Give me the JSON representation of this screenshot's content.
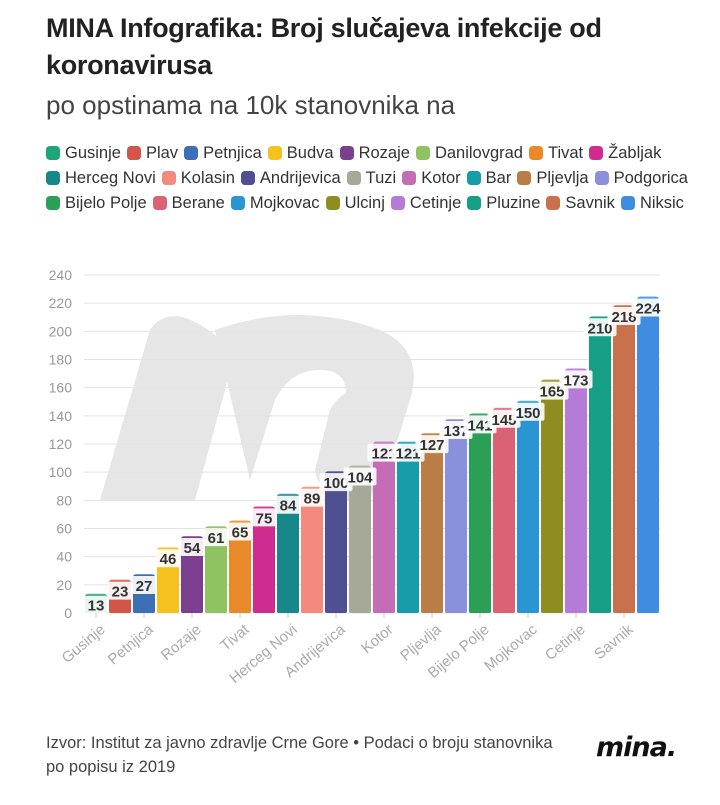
{
  "header": {
    "title": "MINA Infografika: Broj slučajeva infekcije od koronavirusa",
    "subtitle": "po opstinama na 10k stanovnika na"
  },
  "footer": {
    "source": "Izvor: Institut za javno zdravlje Crne Gore • Podaci o broju stanovnika po popisu iz 2019",
    "logo": "mina."
  },
  "chart_data": {
    "type": "bar",
    "categories": [
      "Gusinje",
      "Plav",
      "Petnjica",
      "Budva",
      "Rozaje",
      "Danilovgrad",
      "Tivat",
      "Žabljak",
      "Herceg Novi",
      "Kolasin",
      "Andrijevica",
      "Tuzi",
      "Kotor",
      "Bar",
      "Pljevlja",
      "Podgorica",
      "Bijelo Polje",
      "Berane",
      "Mojkovac",
      "Ulcinj",
      "Cetinje",
      "Pluzine",
      "Savnik",
      "Niksic"
    ],
    "values": [
      13,
      23,
      27,
      46,
      54,
      61,
      65,
      75,
      84,
      89,
      100,
      104,
      121,
      121,
      127,
      137,
      141,
      145,
      150,
      165,
      173,
      210,
      218,
      224
    ],
    "data_labels": [
      "13",
      "23",
      "27",
      "46",
      "54",
      "61",
      "65",
      "75",
      "84",
      "89",
      "100",
      "104",
      "121",
      "121",
      "127",
      "137",
      "141",
      "145",
      "150",
      "165",
      "173",
      "210",
      "218",
      "224"
    ],
    "colors": [
      "#1fa37a",
      "#d2554a",
      "#3d6fb6",
      "#f4c11e",
      "#7b3f8f",
      "#8fc260",
      "#e8892a",
      "#cf2c8f",
      "#17878a",
      "#f48a7e",
      "#4f4f91",
      "#a7a998",
      "#c46cb6",
      "#179ca9",
      "#b97d45",
      "#8a90dc",
      "#2a9f55",
      "#d96374",
      "#2a95d3",
      "#8f8c22",
      "#b67ad7",
      "#169e86",
      "#c9704d",
      "#3f8de0"
    ],
    "y_ticks": [
      "0",
      "20",
      "40",
      "60",
      "80",
      "100",
      "120",
      "140",
      "160",
      "180",
      "200",
      "220",
      "240"
    ],
    "ylim": [
      0,
      240
    ],
    "x_tick_labels": [
      "Gusinje",
      "Petnjica",
      "Rozaje",
      "Tivat",
      "Herceg Novi",
      "Andrijevica",
      "Kotor",
      "Pljevlja",
      "Bijelo Polje",
      "Mojkovac",
      "Cetinje",
      "Savnik"
    ],
    "legend_position": "top",
    "grid": true
  }
}
